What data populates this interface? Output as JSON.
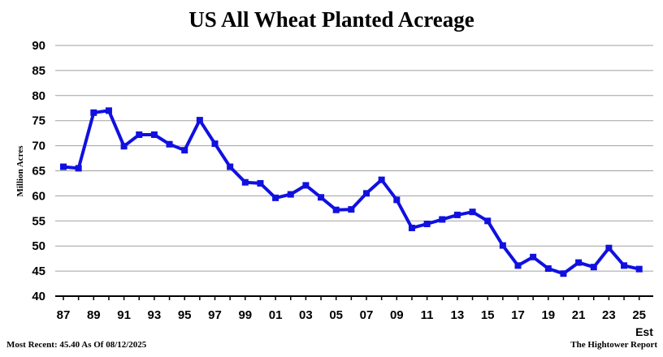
{
  "chart_data": {
    "type": "line",
    "title": "US All Wheat Planted Acreage",
    "ylabel": "Million Acres",
    "xlabel": "",
    "ylim": [
      40,
      90
    ],
    "yticks": [
      40,
      45,
      50,
      55,
      60,
      65,
      70,
      75,
      80,
      85,
      90
    ],
    "grid": true,
    "legend": "none",
    "x": [
      "87",
      "88",
      "89",
      "90",
      "91",
      "92",
      "93",
      "94",
      "95",
      "96",
      "97",
      "98",
      "99",
      "00",
      "01",
      "02",
      "03",
      "04",
      "05",
      "06",
      "07",
      "08",
      "09",
      "10",
      "11",
      "12",
      "13",
      "14",
      "15",
      "16",
      "17",
      "18",
      "19",
      "20",
      "21",
      "22",
      "23",
      "24",
      "25"
    ],
    "xtick_labels": [
      "87",
      "89",
      "91",
      "93",
      "95",
      "97",
      "99",
      "01",
      "03",
      "05",
      "07",
      "09",
      "11",
      "13",
      "15",
      "17",
      "19",
      "21",
      "23",
      "25"
    ],
    "x_last_note": "Est",
    "series": [
      {
        "values": [
          65.8,
          65.5,
          76.6,
          77.0,
          69.9,
          72.2,
          72.2,
          70.3,
          69.1,
          75.1,
          70.4,
          65.8,
          62.7,
          62.5,
          59.6,
          60.3,
          62.1,
          59.7,
          57.2,
          57.3,
          60.5,
          63.2,
          59.2,
          53.6,
          54.4,
          55.3,
          56.2,
          56.8,
          55.0,
          50.1,
          46.1,
          47.8,
          45.5,
          44.5,
          46.7,
          45.8,
          49.6,
          46.1,
          45.4
        ],
        "color": "#1010e0"
      }
    ],
    "footer_left": "Most Recent: 45.40 As Of 08/12/2025",
    "footer_right": "The Hightower Report"
  }
}
